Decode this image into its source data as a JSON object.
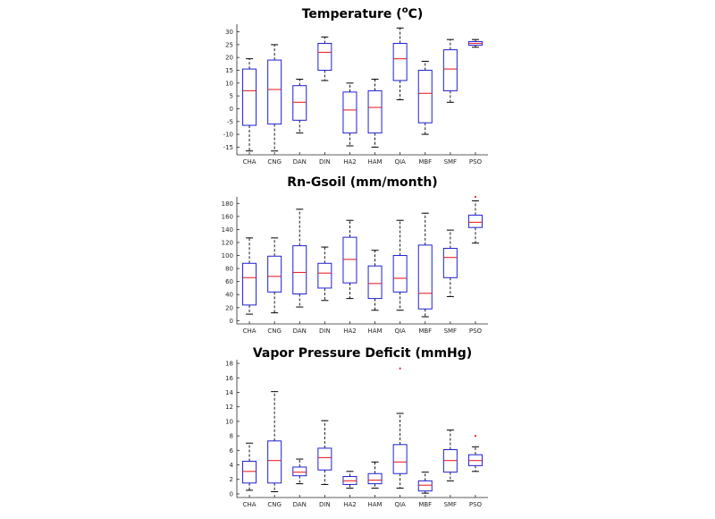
{
  "colors": {
    "box": "#1f1fd6",
    "median": "#e8262b",
    "whisker": "#000000",
    "outlier": "#e8262b",
    "axis": "#262626"
  },
  "chart_data": [
    {
      "type": "boxplot",
      "title": "Temperature (",
      "title_sup": "o",
      "title_tail": "C)",
      "ylim": [
        -18,
        33
      ],
      "yticks": [
        -15,
        -10,
        -5,
        0,
        5,
        10,
        15,
        20,
        25,
        30
      ],
      "categories": [
        "CHA",
        "CNG",
        "DAN",
        "DIN",
        "HA2",
        "HAM",
        "QIA",
        "MBF",
        "SMF",
        "PSO"
      ],
      "boxes": [
        {
          "min": -16.5,
          "q1": -6.5,
          "median": 7,
          "q3": 15.5,
          "max": 19.5,
          "outliers": []
        },
        {
          "min": -16.5,
          "q1": -6,
          "median": 7.5,
          "q3": 19,
          "max": 25,
          "outliers": []
        },
        {
          "min": -9.5,
          "q1": -4.5,
          "median": 2.5,
          "q3": 9,
          "max": 11.5,
          "outliers": []
        },
        {
          "min": 11,
          "q1": 15,
          "median": 22,
          "q3": 25.5,
          "max": 28,
          "outliers": []
        },
        {
          "min": -14.5,
          "q1": -9.5,
          "median": -0.5,
          "q3": 6.5,
          "max": 10,
          "outliers": []
        },
        {
          "min": -15,
          "q1": -9.5,
          "median": 0.5,
          "q3": 7,
          "max": 11.5,
          "outliers": []
        },
        {
          "min": 3.5,
          "q1": 11,
          "median": 19.5,
          "q3": 25.5,
          "max": 31.5,
          "outliers": []
        },
        {
          "min": -10,
          "q1": -5.5,
          "median": 6,
          "q3": 15,
          "max": 18.5,
          "outliers": []
        },
        {
          "min": 2.5,
          "q1": 7,
          "median": 15.5,
          "q3": 23,
          "max": 27,
          "outliers": []
        },
        {
          "min": 24,
          "q1": 24.8,
          "median": 25.5,
          "q3": 26.2,
          "max": 27,
          "outliers": []
        }
      ]
    },
    {
      "type": "boxplot",
      "title": "Rn-Gsoil (mm/month)",
      "title_sup": "",
      "title_tail": "",
      "ylim": [
        -5,
        190
      ],
      "yticks": [
        0,
        20,
        40,
        60,
        80,
        100,
        120,
        140,
        160,
        180
      ],
      "categories": [
        "CHA",
        "CNG",
        "DAN",
        "DIN",
        "HA2",
        "HAM",
        "QIA",
        "MBF",
        "SMF",
        "PSO"
      ],
      "boxes": [
        {
          "min": 10,
          "q1": 24,
          "median": 66,
          "q3": 88,
          "max": 127,
          "outliers": []
        },
        {
          "min": 12,
          "q1": 44,
          "median": 68,
          "q3": 99,
          "max": 127,
          "outliers": []
        },
        {
          "min": 21,
          "q1": 41,
          "median": 74,
          "q3": 115,
          "max": 171,
          "outliers": []
        },
        {
          "min": 31,
          "q1": 50,
          "median": 73,
          "q3": 88,
          "max": 113,
          "outliers": []
        },
        {
          "min": 34,
          "q1": 58,
          "median": 94,
          "q3": 128,
          "max": 154,
          "outliers": []
        },
        {
          "min": 16,
          "q1": 34,
          "median": 57,
          "q3": 84,
          "max": 108,
          "outliers": []
        },
        {
          "min": 16,
          "q1": 44,
          "median": 65,
          "q3": 100,
          "max": 154,
          "outliers": []
        },
        {
          "min": 6,
          "q1": 18,
          "median": 42,
          "q3": 116,
          "max": 165,
          "outliers": []
        },
        {
          "min": 37,
          "q1": 66,
          "median": 97,
          "q3": 111,
          "max": 139,
          "outliers": []
        },
        {
          "min": 119,
          "q1": 143,
          "median": 151,
          "q3": 162,
          "max": 184,
          "outliers": [
            190
          ]
        }
      ]
    },
    {
      "type": "boxplot",
      "title": "Vapor Pressure Deficit (mmHg)",
      "title_sup": "",
      "title_tail": "",
      "ylim": [
        -0.5,
        18.5
      ],
      "yticks": [
        0,
        2,
        4,
        6,
        8,
        10,
        12,
        14,
        16,
        18
      ],
      "categories": [
        "CHA",
        "CNG",
        "DAN",
        "DIN",
        "HA2",
        "HAM",
        "QIA",
        "MBF",
        "SMF",
        "PSO"
      ],
      "boxes": [
        {
          "min": 0.5,
          "q1": 1.5,
          "median": 3.1,
          "q3": 4.5,
          "max": 7,
          "outliers": []
        },
        {
          "min": 0.3,
          "q1": 1.5,
          "median": 4.6,
          "q3": 7.3,
          "max": 14.1,
          "outliers": []
        },
        {
          "min": 1.4,
          "q1": 2.5,
          "median": 3,
          "q3": 3.7,
          "max": 4.8,
          "outliers": []
        },
        {
          "min": 1.3,
          "q1": 3.3,
          "median": 5,
          "q3": 6.3,
          "max": 10.1,
          "outliers": []
        },
        {
          "min": 0.8,
          "q1": 1.3,
          "median": 1.8,
          "q3": 2.4,
          "max": 3.1,
          "outliers": []
        },
        {
          "min": 0.8,
          "q1": 1.4,
          "median": 1.9,
          "q3": 2.8,
          "max": 4.4,
          "outliers": []
        },
        {
          "min": 0.8,
          "q1": 2.8,
          "median": 4.4,
          "q3": 6.8,
          "max": 11.1,
          "outliers": [
            17.3
          ]
        },
        {
          "min": 0.1,
          "q1": 0.4,
          "median": 1.2,
          "q3": 1.8,
          "max": 3,
          "outliers": []
        },
        {
          "min": 1.8,
          "q1": 3,
          "median": 4.6,
          "q3": 6.1,
          "max": 8.8,
          "outliers": []
        },
        {
          "min": 3.1,
          "q1": 3.9,
          "median": 4.6,
          "q3": 5.4,
          "max": 6.5,
          "outliers": [
            8
          ]
        }
      ]
    }
  ]
}
